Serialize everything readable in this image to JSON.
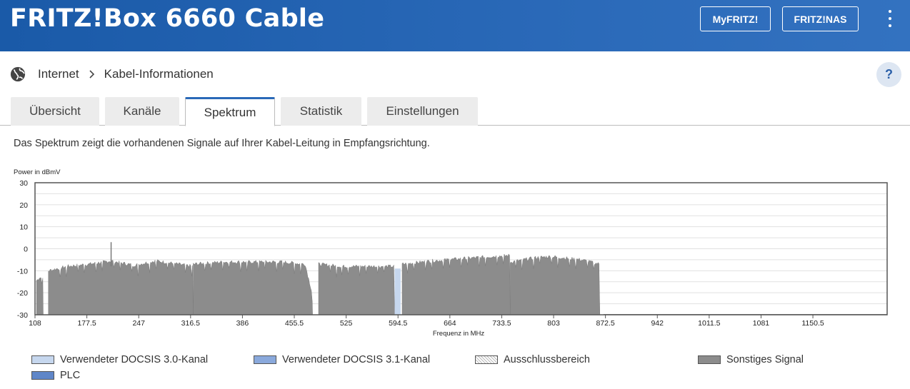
{
  "header": {
    "title": "FRITZ!Box 6660 Cable",
    "buttons": {
      "myfritz": "MyFRITZ!",
      "fritznas": "FRITZ!NAS"
    },
    "colors": {
      "bar": "#1a5aa8"
    }
  },
  "breadcrumb": {
    "icon": "globe-icon",
    "items": [
      "Internet",
      "Kabel-Informationen"
    ]
  },
  "help": {
    "label": "?"
  },
  "tabs": [
    {
      "label": "Übersicht",
      "active": false
    },
    {
      "label": "Kanäle",
      "active": false
    },
    {
      "label": "Spektrum",
      "active": true
    },
    {
      "label": "Statistik",
      "active": false
    },
    {
      "label": "Einstellungen",
      "active": false
    }
  ],
  "description": "Das Spektrum zeigt die vorhandenen Signale auf Ihrer Kabel-Leitung in Empfangsrichtung.",
  "chart_data": {
    "type": "area",
    "ylabel": "Power in dBmV",
    "xlabel": "Frequenz in MHz",
    "ylim": [
      -30,
      30
    ],
    "xlim": [
      108,
      1250
    ],
    "yticks": [
      "30",
      "20",
      "10",
      "0",
      "-10",
      "-20",
      "-30"
    ],
    "xticks": [
      "108",
      "177.5",
      "247",
      "316.5",
      "386",
      "455.5",
      "525",
      "594.5",
      "664",
      "733.5",
      "803",
      "872.5",
      "942",
      "1011.5",
      "1081",
      "1150.5"
    ],
    "grid": true,
    "colors": {
      "signal": "#8c8c8c",
      "docsis30": "#c6d7ee",
      "docsis31": "#8aa9dc",
      "plc": "#5f86c8"
    },
    "series": [
      {
        "name": "Sonstiges Signal",
        "segments": [
          {
            "x": [
              110,
              114,
              119
            ],
            "y": [
              -14.5,
              -13,
              -13.5
            ]
          },
          {
            "x": [
              126,
              150,
              180,
              210,
              240,
              270,
              300,
              320
            ],
            "y": [
              -10,
              -8,
              -7,
              -5.5,
              -7.5,
              -5.5,
              -7,
              -8
            ]
          },
          {
            "x": [
              320,
              360,
              400,
              440,
              470,
              480
            ],
            "y": [
              -7,
              -6,
              -6,
              -6,
              -7,
              -21
            ]
          },
          {
            "x": [
              488,
              520,
              560,
              590
            ],
            "y": [
              -7,
              -8,
              -8,
              -8
            ]
          },
          {
            "x": [
              600,
              640,
              680,
              720,
              745
            ],
            "y": [
              -7,
              -5.5,
              -4.5,
              -3.5,
              -3
            ]
          },
          {
            "x": [
              745,
              780,
              800,
              840,
              865
            ],
            "y": [
              -6,
              -4,
              -3.5,
              -5,
              -7
            ]
          },
          {
            "x": [
              870,
              1250
            ],
            "y": [
              -30,
              -30
            ]
          }
        ],
        "peaks": [
          {
            "x": 210,
            "y": 3
          }
        ]
      },
      {
        "name": "Verwendeter DOCSIS 3.0-Kanal",
        "segments": [
          {
            "x": [
              590,
              598
            ],
            "y": [
              -9,
              -9
            ]
          }
        ]
      }
    ],
    "legend": [
      {
        "label": "Verwendeter DOCSIS 3.0-Kanal",
        "color": "#c6d7ee",
        "pattern": "solid"
      },
      {
        "label": "Verwendeter DOCSIS 3.1-Kanal",
        "color": "#8aa9dc",
        "pattern": "solid"
      },
      {
        "label": "Ausschlussbereich",
        "color": "#ffffff",
        "pattern": "hatched"
      },
      {
        "label": "Sonstiges Signal",
        "color": "#8c8c8c",
        "pattern": "solid"
      },
      {
        "label": "PLC",
        "color": "#5f86c8",
        "pattern": "solid"
      }
    ]
  }
}
